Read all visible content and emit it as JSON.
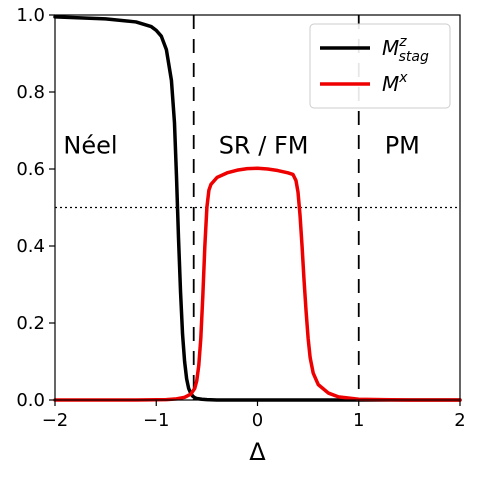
{
  "chart_data": {
    "type": "line",
    "xlabel": "Δ",
    "ylabel": "",
    "title": "",
    "xlim": [
      -2,
      2
    ],
    "ylim": [
      0,
      1.0
    ],
    "xticks": [
      -2,
      -1,
      0,
      1,
      2
    ],
    "xtick_labels": [
      "−2",
      "−1",
      "0",
      "1",
      "2"
    ],
    "yticks": [
      0.0,
      0.2,
      0.4,
      0.6,
      0.8,
      1.0
    ],
    "ytick_labels": [
      "0.0",
      "0.2",
      "0.4",
      "0.6",
      "0.8",
      "1.0"
    ],
    "grid": false,
    "legend_position": "top-right",
    "series": [
      {
        "name": "M^z_stag",
        "label_base": "M",
        "label_sup": "z",
        "label_sub": "stag",
        "color": "#000000",
        "x": [
          -2.0,
          -1.5,
          -1.2,
          -1.05,
          -1.0,
          -0.95,
          -0.9,
          -0.85,
          -0.82,
          -0.8,
          -0.78,
          -0.76,
          -0.74,
          -0.72,
          -0.7,
          -0.68,
          -0.66,
          -0.64,
          -0.62,
          -0.6,
          -0.55,
          -0.5,
          -0.4,
          0.0,
          0.5,
          1.0,
          1.5,
          2.0
        ],
        "values": [
          0.995,
          0.99,
          0.982,
          0.97,
          0.96,
          0.945,
          0.91,
          0.83,
          0.72,
          0.58,
          0.42,
          0.28,
          0.17,
          0.1,
          0.055,
          0.03,
          0.018,
          0.01,
          0.006,
          0.004,
          0.002,
          0.001,
          0.0,
          0.0,
          0.0,
          0.0,
          0.0,
          0.0
        ]
      },
      {
        "name": "M^x",
        "label_base": "M",
        "label_sup": "x",
        "label_sub": "",
        "color": "#ee0000",
        "x": [
          -2.0,
          -1.2,
          -0.9,
          -0.8,
          -0.72,
          -0.66,
          -0.62,
          -0.6,
          -0.58,
          -0.56,
          -0.54,
          -0.52,
          -0.5,
          -0.48,
          -0.46,
          -0.44,
          -0.4,
          -0.3,
          -0.2,
          -0.1,
          0.0,
          0.1,
          0.2,
          0.3,
          0.35,
          0.38,
          0.4,
          0.42,
          0.44,
          0.46,
          0.48,
          0.5,
          0.52,
          0.55,
          0.6,
          0.7,
          0.8,
          1.0,
          1.5,
          2.0
        ],
        "values": [
          0.0,
          0.0,
          0.001,
          0.003,
          0.007,
          0.015,
          0.03,
          0.05,
          0.09,
          0.16,
          0.27,
          0.4,
          0.5,
          0.545,
          0.56,
          0.566,
          0.578,
          0.59,
          0.597,
          0.601,
          0.602,
          0.6,
          0.596,
          0.59,
          0.586,
          0.57,
          0.54,
          0.48,
          0.4,
          0.31,
          0.23,
          0.16,
          0.11,
          0.07,
          0.04,
          0.018,
          0.008,
          0.002,
          0.0,
          0.0
        ]
      }
    ],
    "reference_lines": [
      {
        "orientation": "vertical",
        "x": -0.63,
        "style": "dashed",
        "color": "#000000"
      },
      {
        "orientation": "vertical",
        "x": 1.0,
        "style": "dashed",
        "color": "#000000"
      },
      {
        "orientation": "horizontal",
        "y": 0.5,
        "style": "dotted",
        "color": "#000000"
      }
    ],
    "annotations": [
      {
        "text": "Néel",
        "x": -1.65,
        "y": 0.64
      },
      {
        "text": "SR / FM",
        "x": 0.06,
        "y": 0.64
      },
      {
        "text": "PM",
        "x": 1.43,
        "y": 0.64
      }
    ]
  }
}
